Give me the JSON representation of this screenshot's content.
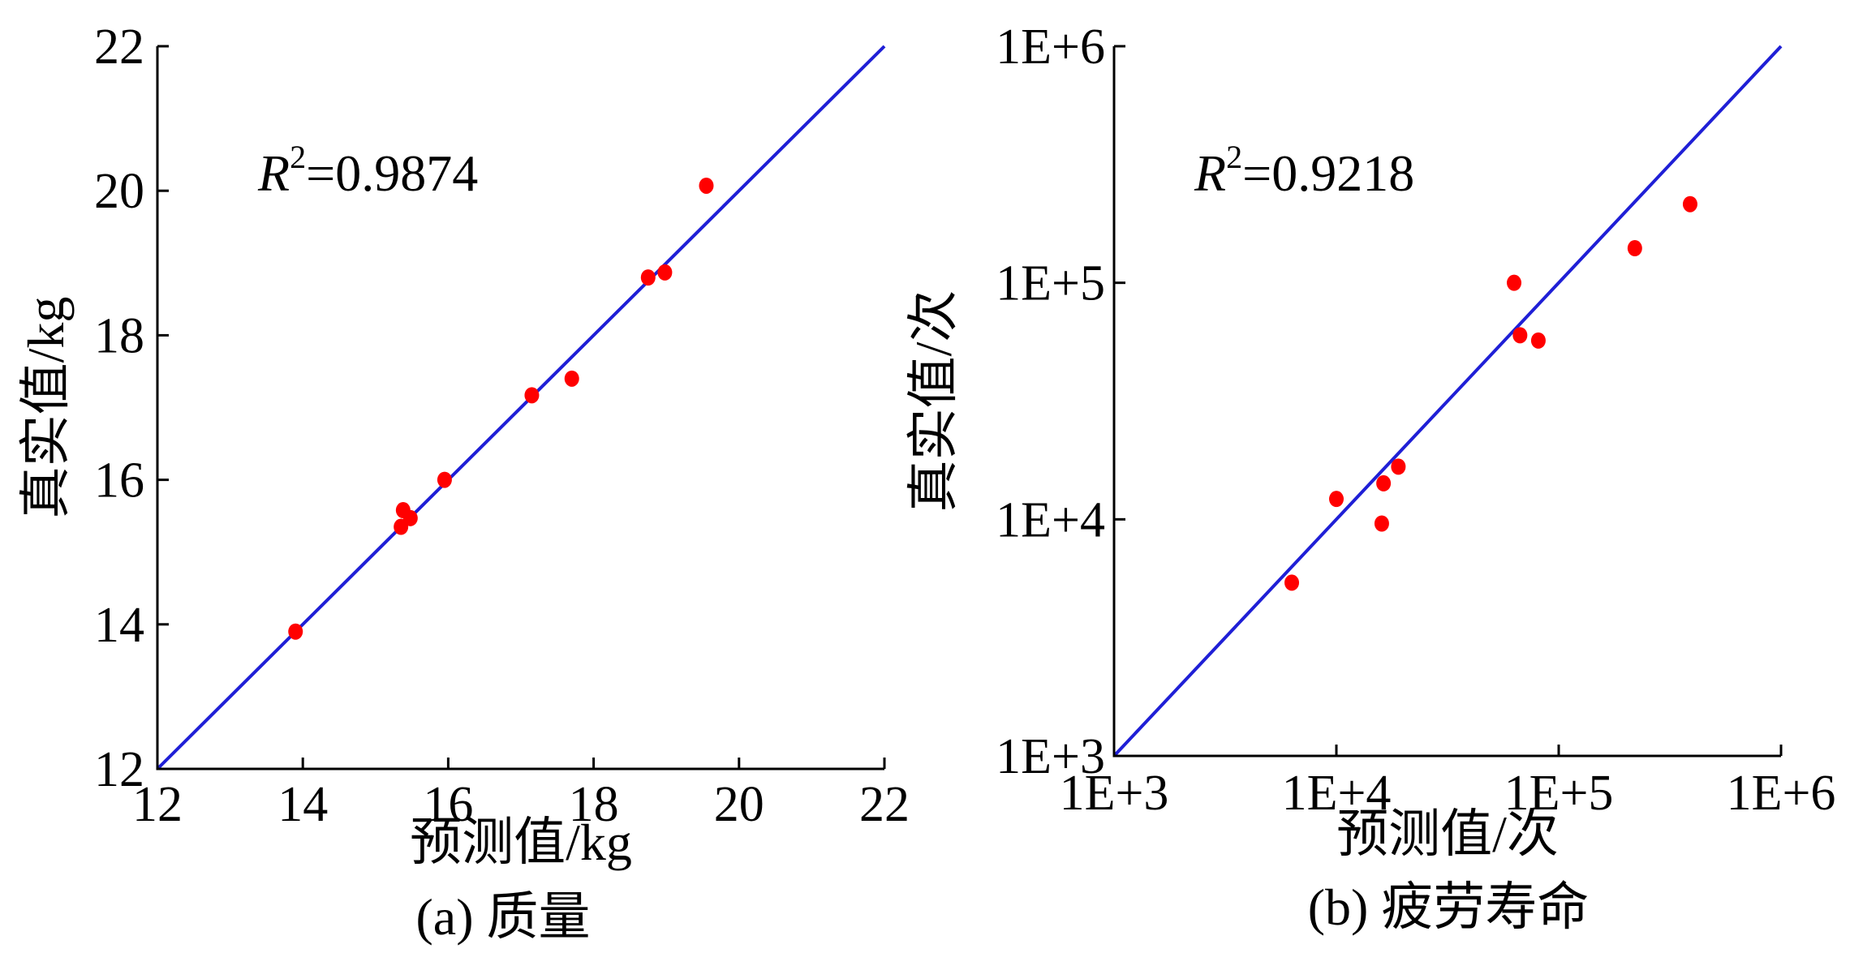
{
  "chart_data": [
    {
      "type": "scatter",
      "caption": "(a) 质量",
      "xlabel": "预测值/kg",
      "ylabel": "真实值/kg",
      "x_scale": "linear",
      "y_scale": "linear",
      "xlim": [
        12,
        22
      ],
      "ylim": [
        12,
        22
      ],
      "x_ticks": [
        12,
        14,
        16,
        18,
        20,
        22
      ],
      "y_ticks": [
        12,
        14,
        16,
        18,
        20,
        22
      ],
      "x_tick_labels": [
        "12",
        "14",
        "16",
        "18",
        "20",
        "22"
      ],
      "y_tick_labels": [
        "12",
        "14",
        "16",
        "18",
        "20",
        "22"
      ],
      "annotation": {
        "symbol": "R",
        "exponent": "2",
        "text": "=0.9874"
      },
      "fit_line": {
        "from": [
          12,
          12
        ],
        "to": [
          22,
          22
        ]
      },
      "points": [
        {
          "x": 13.9,
          "y": 13.9
        },
        {
          "x": 15.35,
          "y": 15.35
        },
        {
          "x": 15.38,
          "y": 15.58
        },
        {
          "x": 15.48,
          "y": 15.47
        },
        {
          "x": 15.95,
          "y": 16.0
        },
        {
          "x": 17.15,
          "y": 17.17
        },
        {
          "x": 17.7,
          "y": 17.4
        },
        {
          "x": 18.75,
          "y": 18.8
        },
        {
          "x": 18.98,
          "y": 18.87
        },
        {
          "x": 19.55,
          "y": 20.07
        }
      ],
      "grid": false,
      "colors": {
        "points": "#ff0000",
        "fit_line": "#1f1fd6"
      }
    },
    {
      "type": "scatter",
      "caption": "(b) 疲劳寿命",
      "xlabel": "预测值/次",
      "ylabel": "真实值/次",
      "x_scale": "log",
      "y_scale": "log",
      "xlim": [
        1000,
        1000000
      ],
      "ylim": [
        1000,
        1000000
      ],
      "x_ticks": [
        1000,
        10000,
        100000,
        1000000
      ],
      "y_ticks": [
        1000,
        10000,
        100000,
        1000000
      ],
      "x_tick_labels": [
        "1E+3",
        "1E+4",
        "1E+5",
        "1E+6"
      ],
      "y_tick_labels": [
        "1E+3",
        "1E+4",
        "1E+5",
        "1E+6"
      ],
      "annotation": {
        "symbol": "R",
        "exponent": "2",
        "text": "=0.9218"
      },
      "fit_line": {
        "from": [
          1000,
          1000
        ],
        "to": [
          1000000,
          1000000
        ]
      },
      "points": [
        {
          "x": 6300,
          "y": 5400
        },
        {
          "x": 10000,
          "y": 12200
        },
        {
          "x": 16000,
          "y": 9600
        },
        {
          "x": 16300,
          "y": 14200
        },
        {
          "x": 19000,
          "y": 16700
        },
        {
          "x": 63000,
          "y": 100000
        },
        {
          "x": 67000,
          "y": 60000
        },
        {
          "x": 81000,
          "y": 57000
        },
        {
          "x": 220000,
          "y": 140000
        },
        {
          "x": 390000,
          "y": 215000
        }
      ],
      "grid": false,
      "colors": {
        "points": "#ff0000",
        "fit_line": "#1f1fd6"
      }
    }
  ]
}
